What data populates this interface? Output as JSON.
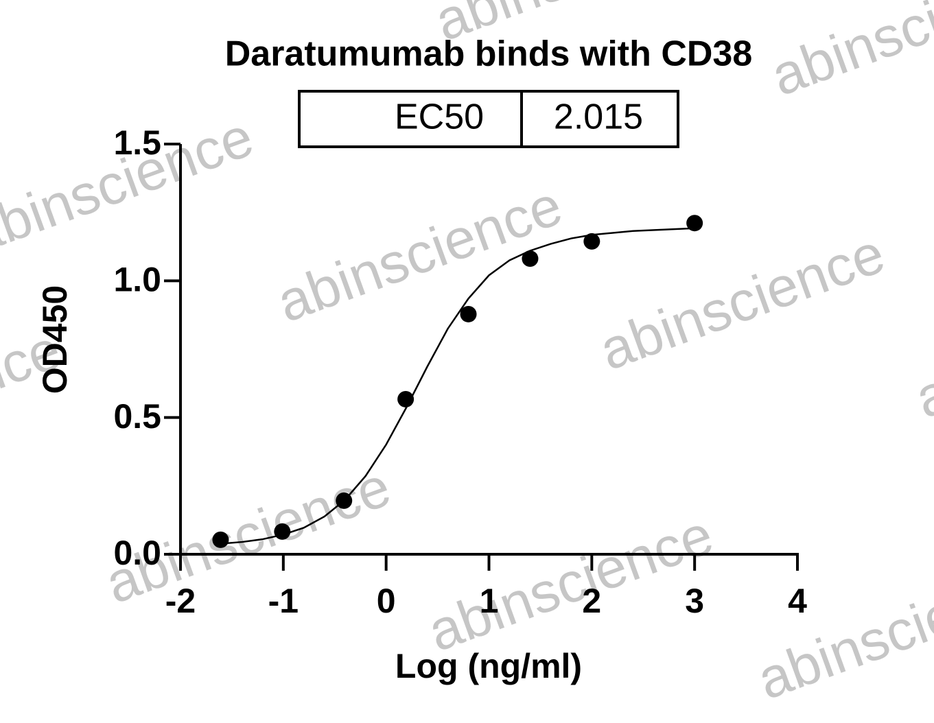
{
  "chart_data": {
    "type": "scatter",
    "title": "Daratumumab binds with CD38",
    "x_label": "Log (ng/ml)",
    "y_label": "OD450",
    "watermark": "abinscience",
    "annotation_table": {
      "label": "EC50",
      "value": 2.015
    },
    "points": {
      "x": [
        -1.61,
        -1.01,
        -0.41,
        0.19,
        0.8,
        1.4,
        2.0,
        3.0
      ],
      "y": [
        0.053,
        0.083,
        0.196,
        0.567,
        0.878,
        1.081,
        1.144,
        1.211
      ],
      "color": "#000000"
    },
    "fit_curve": {
      "x": [
        -1.6,
        -1.4,
        -1.2,
        -1.0,
        -0.8,
        -0.6,
        -0.4,
        -0.2,
        0.0,
        0.2,
        0.4,
        0.6,
        0.8,
        1.0,
        1.2,
        1.4,
        1.6,
        1.8,
        2.0,
        2.4,
        3.0
      ],
      "y": [
        0.039,
        0.045,
        0.055,
        0.072,
        0.097,
        0.138,
        0.199,
        0.286,
        0.401,
        0.539,
        0.686,
        0.825,
        0.935,
        1.02,
        1.075,
        1.11,
        1.135,
        1.155,
        1.168,
        1.182,
        1.192
      ],
      "color": "#000000"
    },
    "xlim": [
      -2,
      4
    ],
    "ylim": [
      0,
      1.5
    ],
    "xticks": [
      -2,
      -1,
      0,
      1,
      2,
      3,
      4
    ],
    "yticks": [
      {
        "value": 0,
        "label": "0.0"
      },
      {
        "value": 0.5,
        "label": "0.5"
      },
      {
        "value": 1,
        "label": "1.0"
      },
      {
        "value": 1.5,
        "label": "1.5"
      }
    ]
  }
}
